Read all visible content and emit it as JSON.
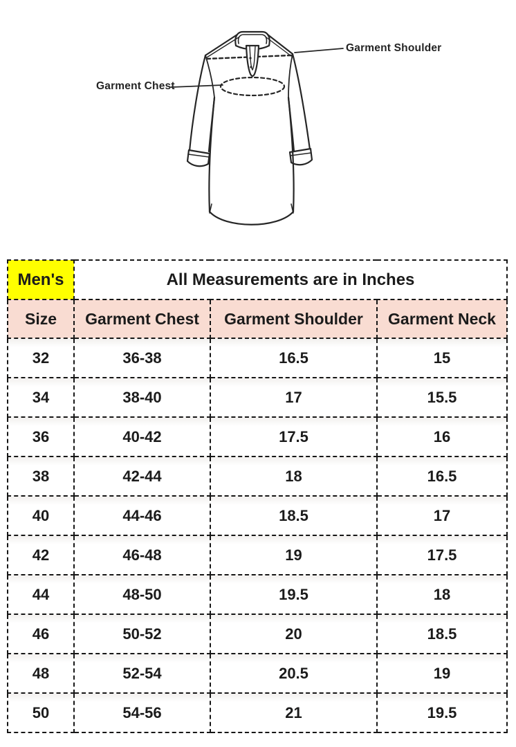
{
  "diagram": {
    "chest_label": "Garment Chest",
    "shoulder_label": "Garment Shoulder"
  },
  "size_chart": {
    "category": "Men's",
    "title": "All Measurements are in Inches",
    "columns": [
      "Size",
      "Garment Chest",
      "Garment Shoulder",
      "Garment Neck"
    ],
    "rows": [
      [
        "32",
        "36-38",
        "16.5",
        "15"
      ],
      [
        "34",
        "38-40",
        "17",
        "15.5"
      ],
      [
        "36",
        "40-42",
        "17.5",
        "16"
      ],
      [
        "38",
        "42-44",
        "18",
        "16.5"
      ],
      [
        "40",
        "44-46",
        "18.5",
        "17"
      ],
      [
        "42",
        "46-48",
        "19",
        "17.5"
      ],
      [
        "44",
        "48-50",
        "19.5",
        "18"
      ],
      [
        "46",
        "50-52",
        "20",
        "18.5"
      ],
      [
        "48",
        "52-54",
        "20.5",
        "19"
      ],
      [
        "50",
        "54-56",
        "21",
        "19.5"
      ]
    ],
    "colors": {
      "category_highlight": "#ffff00",
      "header_background": "#f9dcd2",
      "border": "#161616",
      "text": "#1b1b1b"
    }
  }
}
